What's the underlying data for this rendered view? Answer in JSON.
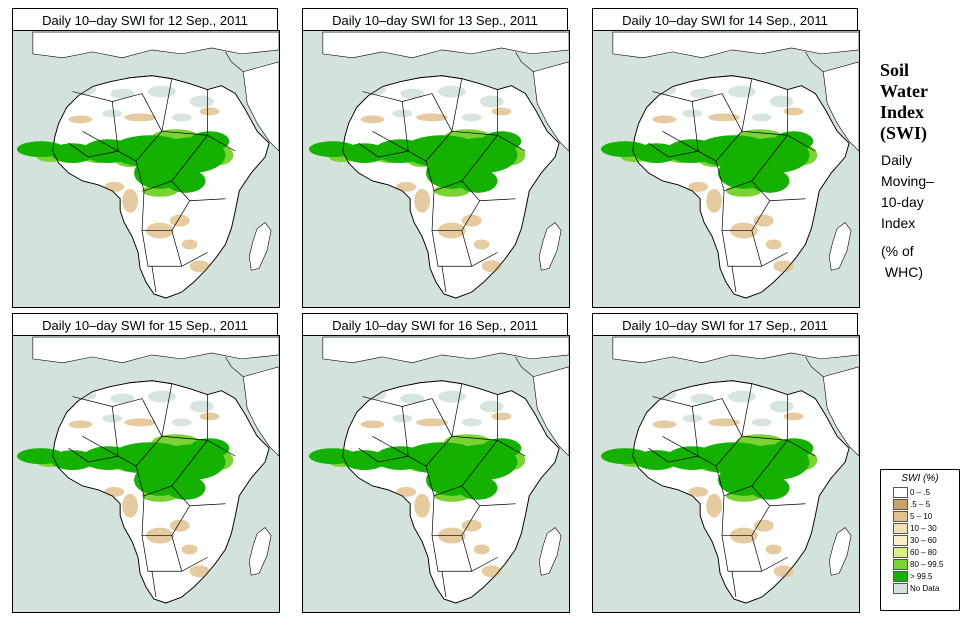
{
  "panels": [
    {
      "title": "Daily 10–day SWI for  12 Sep., 2011",
      "map_label": "africa-swi-map-12-sep"
    },
    {
      "title": "Daily 10–day SWI for  13 Sep., 2011",
      "map_label": "africa-swi-map-13-sep"
    },
    {
      "title": "Daily 10–day SWI for  14 Sep., 2011",
      "map_label": "africa-swi-map-14-sep"
    },
    {
      "title": "Daily 10–day SWI for  15 Sep., 2011",
      "map_label": "africa-swi-map-15-sep"
    },
    {
      "title": "Daily 10–day SWI for  16 Sep., 2011",
      "map_label": "africa-swi-map-16-sep"
    },
    {
      "title": "Daily 10–day SWI for  17 Sep., 2011",
      "map_label": "africa-swi-map-17-sep"
    }
  ],
  "side": {
    "title_lines": [
      "Soil",
      "Water",
      "Index",
      "(SWI)"
    ],
    "subtitle_lines": [
      "Daily",
      "Moving–",
      "10-day",
      "Index"
    ],
    "unit_lines": [
      "(% of",
      " WHC)"
    ]
  },
  "legend": {
    "title": "SWI (%)",
    "items": [
      {
        "label": "0 – .5",
        "color": "#ffffff"
      },
      {
        "label": ".5 – 5",
        "color": "#c8a46a"
      },
      {
        "label": "5 – 10",
        "color": "#e1c28e"
      },
      {
        "label": "10 – 30",
        "color": "#f2dfb6"
      },
      {
        "label": "30 – 60",
        "color": "#fbf0c8"
      },
      {
        "label": "60 – 80",
        "color": "#d9f08a"
      },
      {
        "label": "80 – 99.5",
        "color": "#7ad334"
      },
      {
        "label": "> 99.5",
        "color": "#14b100"
      },
      {
        "label": "No Data",
        "color": "#d4e2dc"
      }
    ]
  },
  "colors": {
    "ocean": "#d4e2dc",
    "land": "#ffffff",
    "border": "#000000",
    "wet": "#14b100",
    "moist": "#7ad334",
    "dry": "#e1c28e"
  }
}
